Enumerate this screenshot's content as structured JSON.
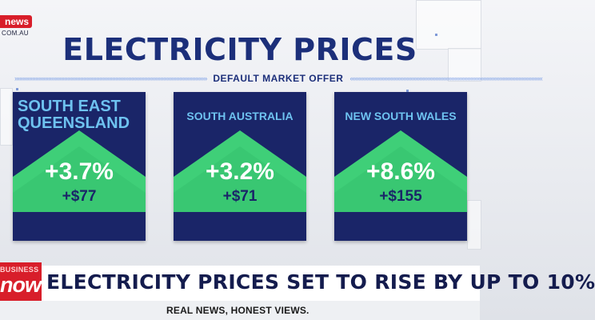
{
  "logo": {
    "brand": "news",
    "url": "COM.AU"
  },
  "title": "ELECTRICITY PRICES",
  "subtitle": "DEFAULT MARKET OFFER",
  "panels": [
    {
      "region": "SOUTH EAST QUEENSLAND",
      "change_pct": "+3.7%",
      "change_dollars": "+$77"
    },
    {
      "region": "SOUTH AUSTRALIA",
      "change_pct": "+3.2%",
      "change_dollars": "+$71"
    },
    {
      "region": "NEW SOUTH WALES",
      "change_pct": "+8.6%",
      "change_dollars": "+$155"
    }
  ],
  "lower_third": {
    "brand_top": "BUSINESS",
    "brand_main": "now",
    "headline": "ELECTRICITY PRICES SET TO RISE BY UP TO 10%",
    "tagline": "REAL NEWS, HONEST VIEWS."
  },
  "colors": {
    "navy": "#1a2568",
    "green": "#3fcf78",
    "region_blue": "#6ec2f0",
    "red": "#d81e2a"
  }
}
